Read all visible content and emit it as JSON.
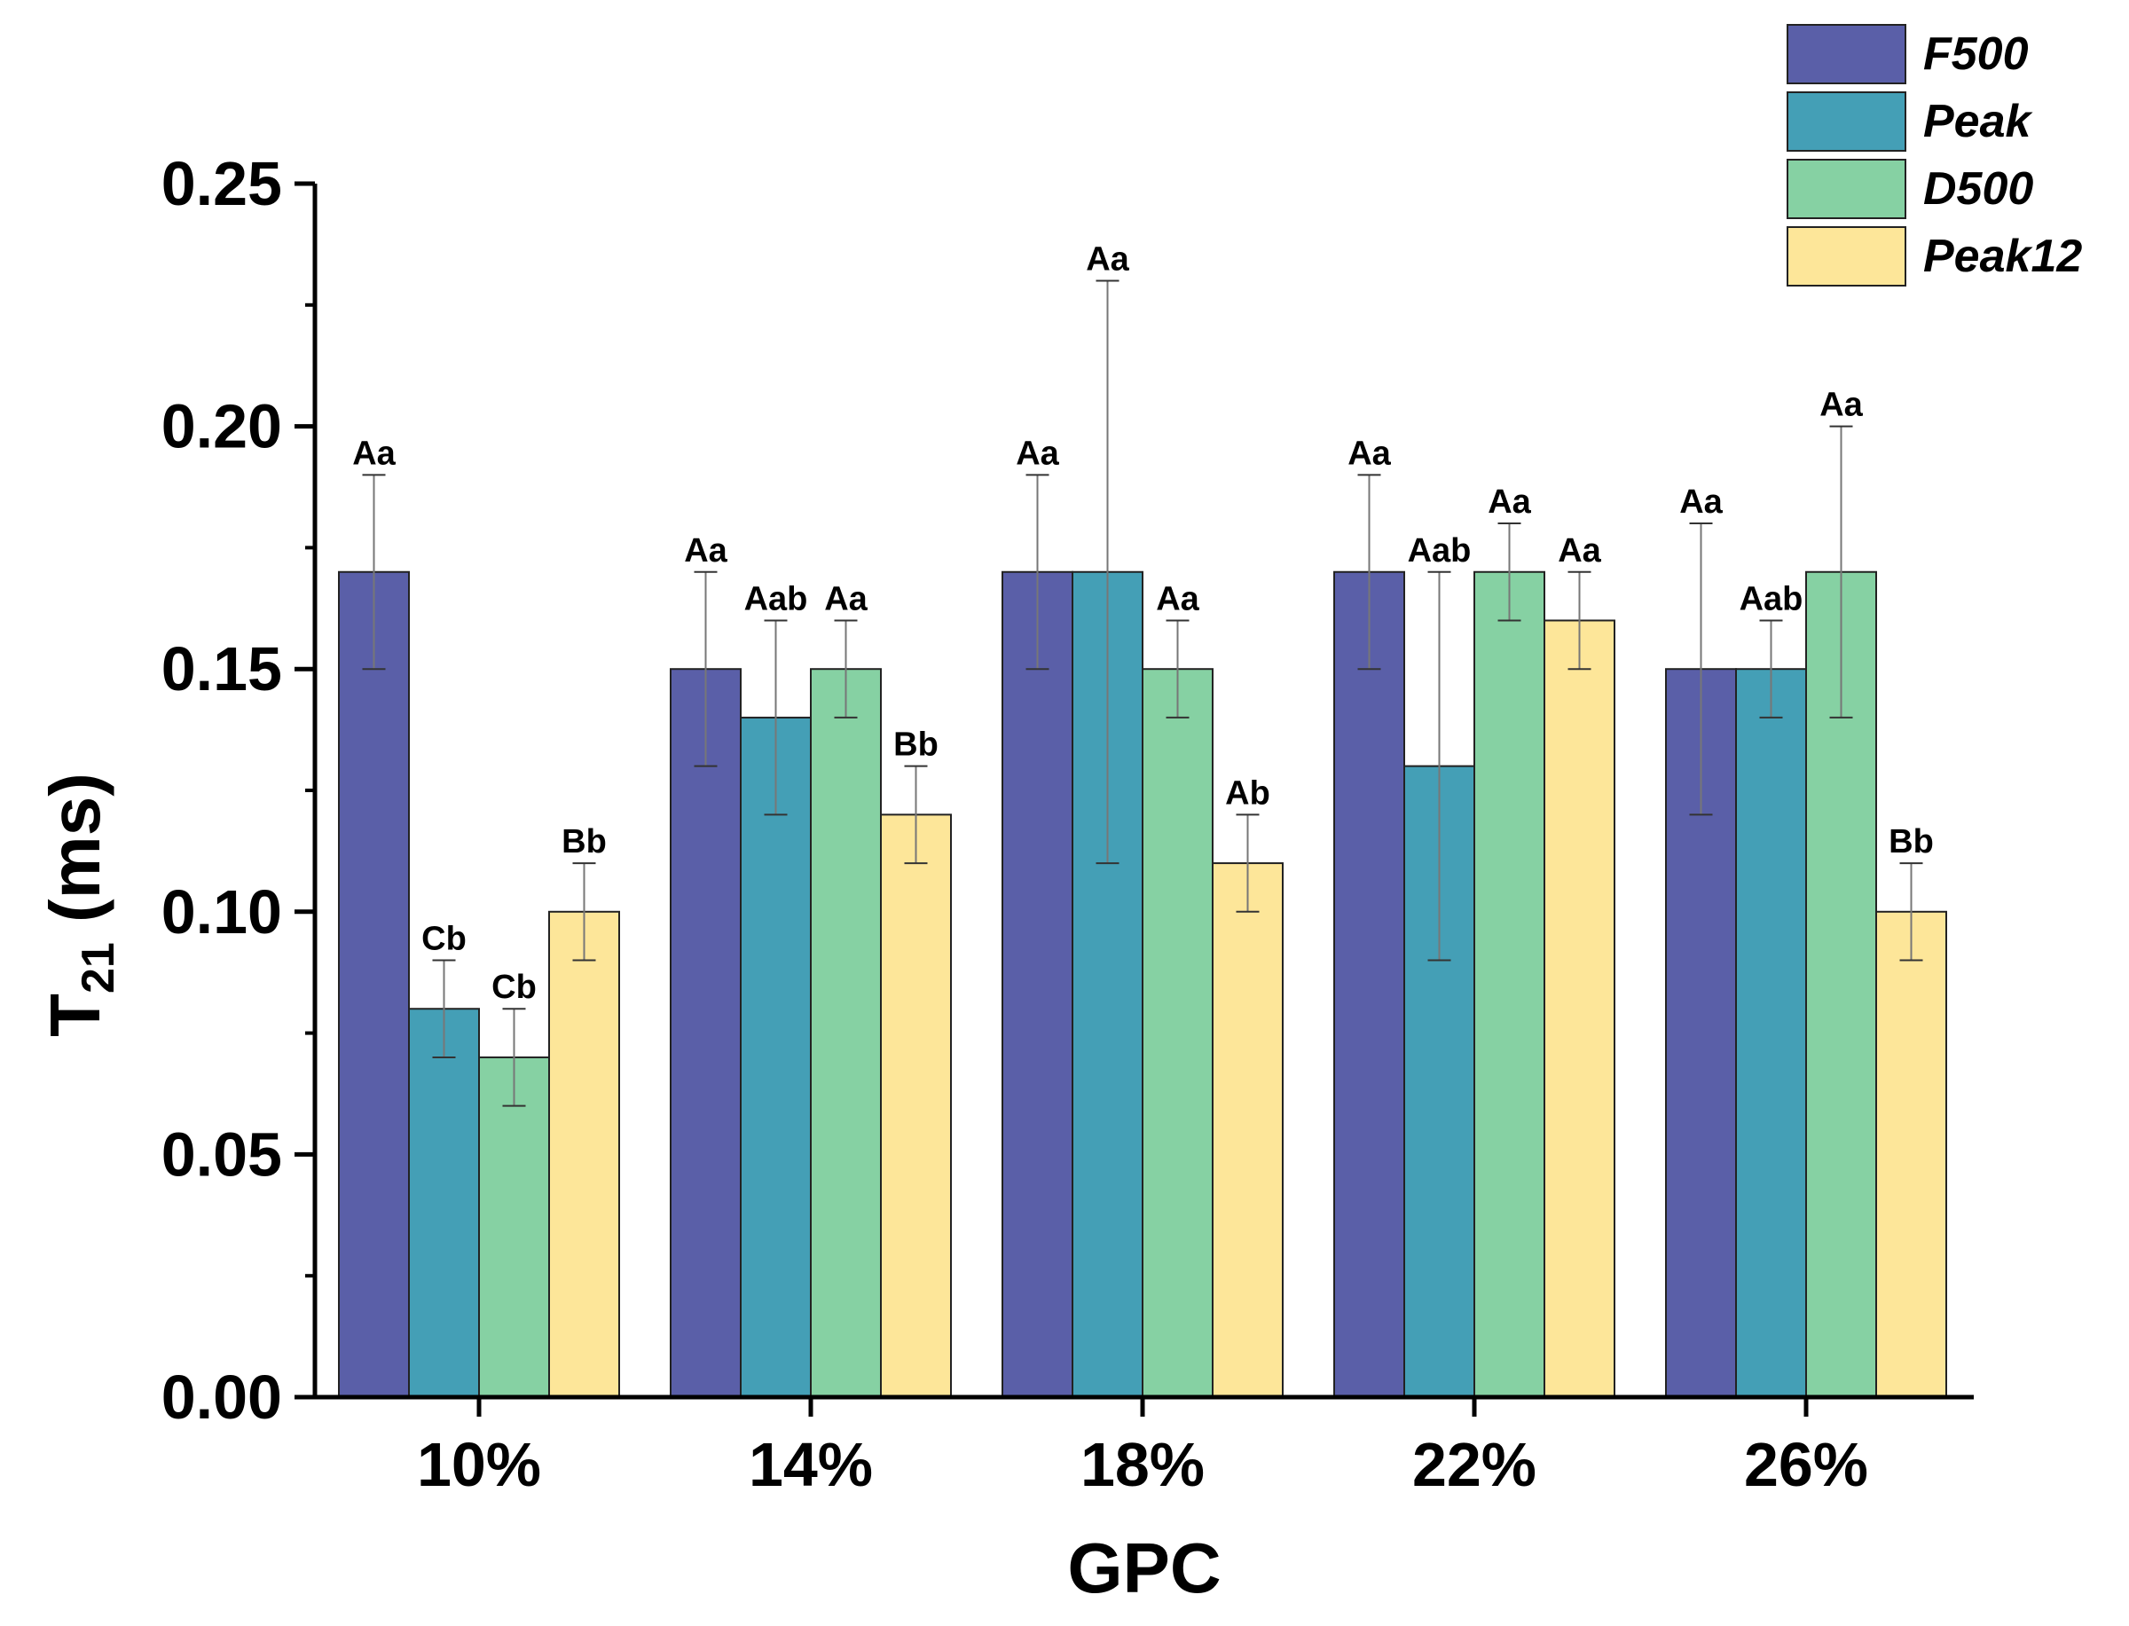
{
  "chart_data": {
    "type": "bar",
    "title": "",
    "xlabel": "GPC",
    "ylabel_main": "T",
    "ylabel_sub": "21",
    "ylabel_unit": " (ms)",
    "ylim": [
      0,
      0.25
    ],
    "yticks": [
      "0.00",
      "0.05",
      "0.10",
      "0.15",
      "0.20",
      "0.25"
    ],
    "categories": [
      "10%",
      "14%",
      "18%",
      "22%",
      "26%"
    ],
    "legend_position": "top-right",
    "series": [
      {
        "name": "F500",
        "color": "#5a5fa8",
        "values": [
          0.17,
          0.15,
          0.17,
          0.17,
          0.15
        ],
        "errors": [
          0.02,
          0.02,
          0.02,
          0.02,
          0.03
        ],
        "labels": [
          "Aa",
          "Aa",
          "Aa",
          "Aa",
          "Aa"
        ]
      },
      {
        "name": "Peak",
        "color": "#449fb6",
        "values": [
          0.08,
          0.14,
          0.17,
          0.13,
          0.15
        ],
        "errors": [
          0.01,
          0.02,
          0.06,
          0.04,
          0.01
        ],
        "labels": [
          "Cb",
          "Aab",
          "Aa",
          "Aab",
          "Aab"
        ]
      },
      {
        "name": "D500",
        "color": "#86d1a3",
        "values": [
          0.07,
          0.15,
          0.15,
          0.17,
          0.17
        ],
        "errors": [
          0.01,
          0.01,
          0.01,
          0.01,
          0.03
        ],
        "labels": [
          "Cb",
          "Aa",
          "Aa",
          "Aa",
          "Aa"
        ]
      },
      {
        "name": "Peak12",
        "color": "#fde699",
        "values": [
          0.1,
          0.12,
          0.11,
          0.16,
          0.1
        ],
        "errors": [
          0.01,
          0.01,
          0.01,
          0.01,
          0.01
        ],
        "labels": [
          "Bb",
          "Bb",
          "Ab",
          "Aa",
          "Bb"
        ]
      }
    ]
  }
}
